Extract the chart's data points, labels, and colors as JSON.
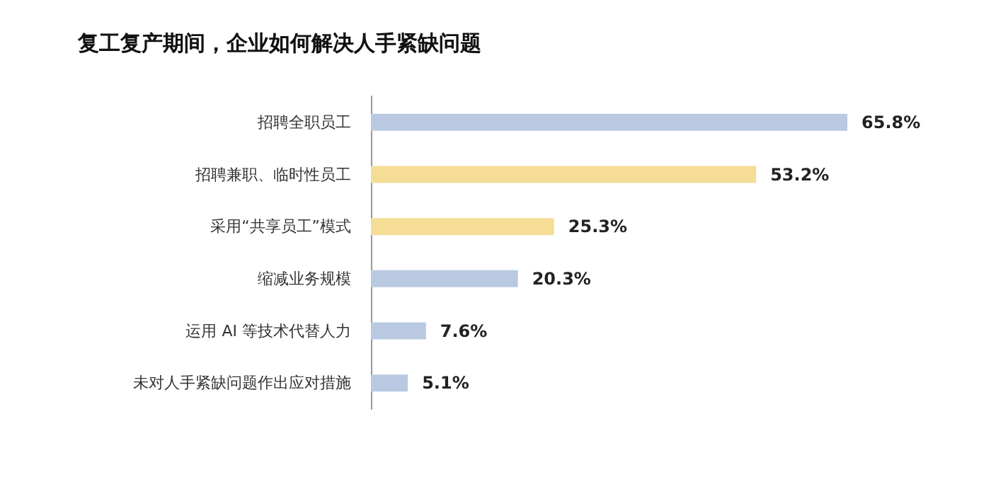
{
  "chart_data": {
    "type": "bar",
    "orientation": "horizontal",
    "title": "复工复产期间，企业如何解决人手紧缺问题",
    "categories": [
      "招聘全职员工",
      "招聘兼职、临时性员工",
      "采用“共享员工”模式",
      "缩减业务规模",
      "运用 AI 等技术代替人力",
      "未对人手紧缺问题作出应对措施"
    ],
    "values": [
      65.8,
      53.2,
      25.3,
      20.3,
      7.6,
      5.1
    ],
    "colors": [
      "#b8c9e1",
      "#f6dd96",
      "#f6dd96",
      "#b8c9e1",
      "#b8c9e1",
      "#b8c9e1"
    ],
    "value_labels": [
      "65.8%",
      "53.2%",
      "25.3%",
      "20.3%",
      "7.6%",
      "5.1%"
    ],
    "tick_labels": "y"
  }
}
